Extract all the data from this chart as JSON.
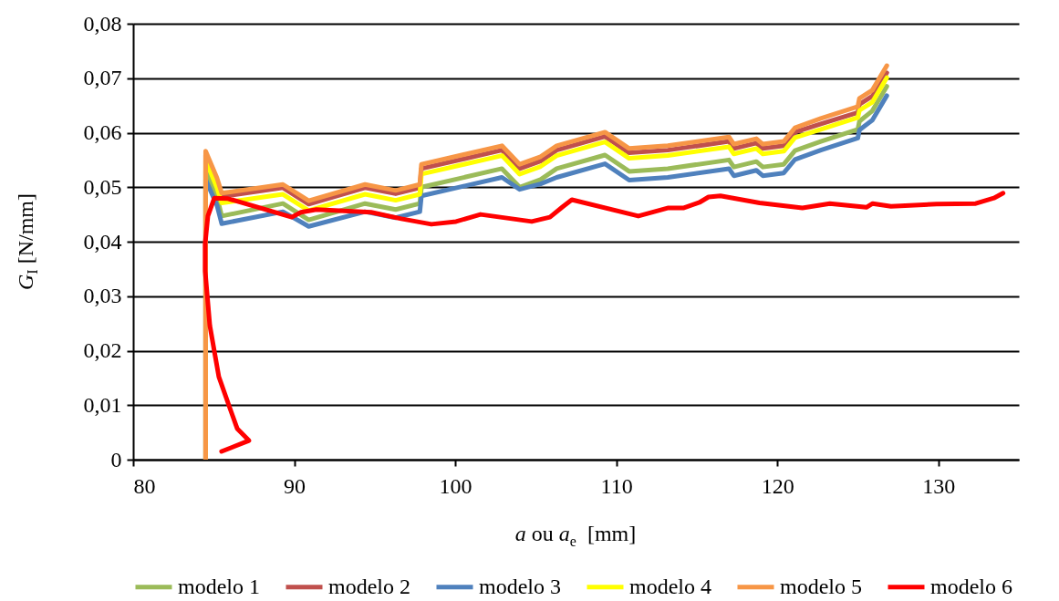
{
  "chart_data": {
    "type": "line",
    "xlabel": "a ou a$_{e}$  [mm]",
    "ylabel": "G$_{I}$ [N/mm]",
    "xlim": [
      80,
      135
    ],
    "xticks": [
      80,
      90,
      100,
      110,
      120,
      130
    ],
    "ylim": [
      0,
      0.08
    ],
    "yticks": [
      0,
      {
        "value": 0.01,
        "label": "0,01"
      },
      {
        "value": 0.02,
        "label": "0,02"
      },
      {
        "value": 0.03,
        "label": "0,03"
      },
      {
        "value": 0.04,
        "label": "0,04"
      },
      {
        "value": 0.05,
        "label": "0,05"
      },
      {
        "value": 0.06,
        "label": "0,06"
      },
      {
        "value": 0.07,
        "label": "0,07"
      },
      {
        "value": 0.08,
        "label": "0,08"
      }
    ],
    "grid": "y",
    "legend": "bottom",
    "x": [
      84.5,
      84.5,
      85.2,
      85.5,
      89.3,
      90.9,
      94.4,
      96.3,
      97.8,
      97.9,
      102.9,
      104.0,
      105.3,
      106.3,
      109.3,
      110.8,
      113.2,
      117.0,
      117.3,
      118.7,
      119.1,
      120.4,
      121.1,
      122.7,
      125.0,
      125.1,
      125.9,
      126.8
    ],
    "series": [
      {
        "name": "modelo 1",
        "color": "#9bbb59",
        "values": [
          0,
          0.053,
          0.0482,
          0.0447,
          0.047,
          0.044,
          0.047,
          0.0459,
          0.047,
          0.05,
          0.0534,
          0.05,
          0.0514,
          0.0534,
          0.0559,
          0.0529,
          0.0534,
          0.055,
          0.0537,
          0.0547,
          0.0537,
          0.0542,
          0.0567,
          0.0584,
          0.0606,
          0.0621,
          0.064,
          0.0685
        ]
      },
      {
        "name": "modelo 2",
        "color": "#c0504d",
        "values": [
          0,
          0.056,
          0.0511,
          0.0483,
          0.0499,
          0.0469,
          0.0499,
          0.0488,
          0.0499,
          0.0534,
          0.0568,
          0.0534,
          0.0548,
          0.0568,
          0.0593,
          0.0563,
          0.0568,
          0.0584,
          0.0571,
          0.0581,
          0.0571,
          0.0576,
          0.0601,
          0.0616,
          0.0637,
          0.0652,
          0.0667,
          0.071
        ]
      },
      {
        "name": "modelo 3",
        "color": "#4f81bd",
        "values": [
          0,
          0.0514,
          0.0467,
          0.0433,
          0.0455,
          0.0428,
          0.0455,
          0.0444,
          0.0455,
          0.0484,
          0.0518,
          0.0496,
          0.0506,
          0.0518,
          0.0543,
          0.0513,
          0.0518,
          0.0534,
          0.0521,
          0.0531,
          0.0521,
          0.0526,
          0.0551,
          0.0568,
          0.059,
          0.0605,
          0.0623,
          0.0668
        ]
      },
      {
        "name": "modelo 4",
        "color": "#ffff00",
        "values": [
          0,
          0.055,
          0.0499,
          0.0471,
          0.0487,
          0.0457,
          0.0487,
          0.0476,
          0.0487,
          0.0524,
          0.0558,
          0.0524,
          0.0538,
          0.0558,
          0.0583,
          0.0553,
          0.0558,
          0.0574,
          0.0561,
          0.0571,
          0.0561,
          0.0566,
          0.0591,
          0.0606,
          0.0628,
          0.0641,
          0.0656,
          0.0701
        ]
      },
      {
        "name": "modelo 5",
        "color": "#f79646",
        "values": [
          0,
          0.0566,
          0.0517,
          0.0489,
          0.0505,
          0.0475,
          0.0505,
          0.0494,
          0.0505,
          0.0542,
          0.0576,
          0.0542,
          0.0556,
          0.0576,
          0.0601,
          0.0571,
          0.0576,
          0.0592,
          0.0579,
          0.0589,
          0.0579,
          0.0584,
          0.0609,
          0.0626,
          0.0648,
          0.0663,
          0.0678,
          0.0723
        ]
      },
      {
        "name": "modelo 6",
        "color": "#ff0000",
        "x": [
          85.49,
          87.19,
          86.46,
          86.06,
          85.32,
          84.76,
          84.47,
          84.47,
          84.64,
          85.04,
          85.89,
          89.85,
          90.42,
          91.38,
          94.78,
          96.65,
          98.52,
          100.05,
          101.57,
          104.75,
          105.88,
          106.67,
          107.24,
          111.37,
          113.24,
          114.2,
          115.16,
          115.73,
          116.47,
          118.9,
          121.56,
          123.26,
          125.53,
          125.92,
          127.06,
          129.89,
          132.32,
          133.45,
          134.02
        ],
        "values": [
          0.0015,
          0.0035,
          0.0057,
          0.009,
          0.0152,
          0.0246,
          0.0346,
          0.0397,
          0.0447,
          0.048,
          0.0479,
          0.0445,
          0.0454,
          0.0459,
          0.0454,
          0.0442,
          0.0432,
          0.0437,
          0.045,
          0.0437,
          0.0445,
          0.0464,
          0.0477,
          0.0447,
          0.0462,
          0.0462,
          0.0472,
          0.0482,
          0.0484,
          0.0471,
          0.0462,
          0.047,
          0.0463,
          0.047,
          0.0465,
          0.0469,
          0.047,
          0.048,
          0.0489
        ]
      }
    ]
  }
}
